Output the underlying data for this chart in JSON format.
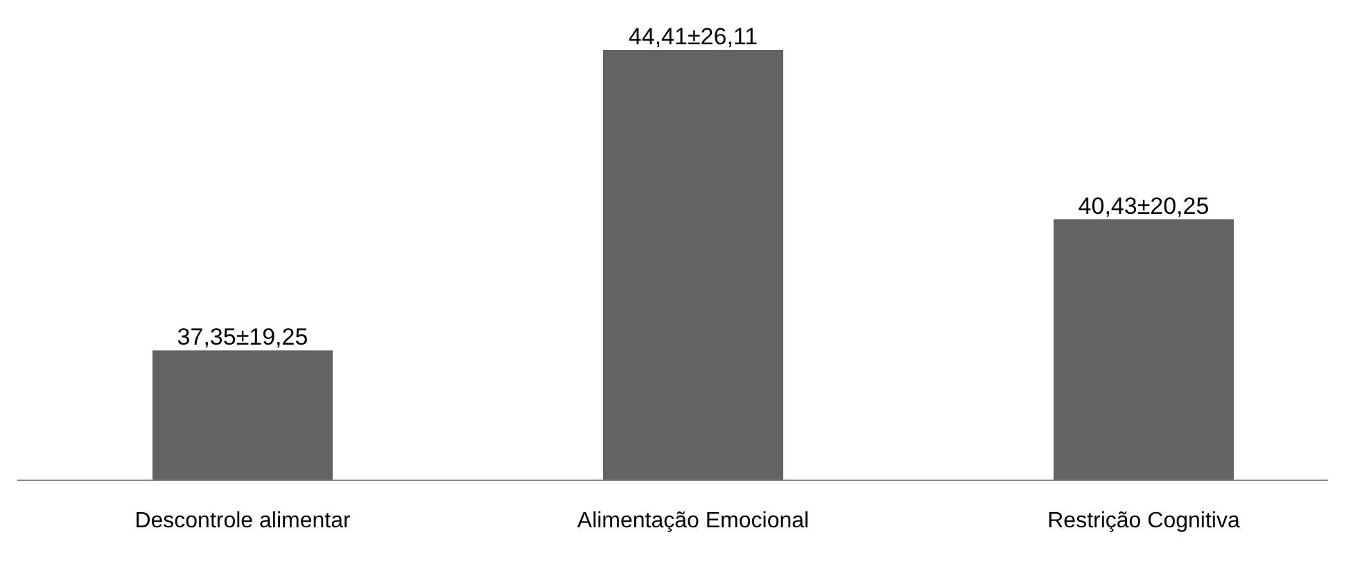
{
  "chart_data": {
    "type": "bar",
    "categories": [
      "Descontrole alimentar",
      "Alimentação Emocional",
      "Restrição Cognitiva"
    ],
    "values": [
      37.35,
      44.41,
      40.43
    ],
    "value_labels": [
      "37,35±19,25",
      "44,41±26,11",
      "40,43±20,25"
    ],
    "color": "#636363",
    "ylim": [
      34.3,
      44.41
    ],
    "tick_labels": "x"
  }
}
